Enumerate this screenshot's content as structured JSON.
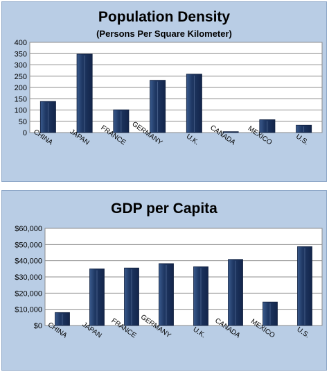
{
  "chart_data": [
    {
      "type": "bar",
      "title": "Population Density",
      "subtitle": "(Persons Per Square Kilometer)",
      "xlabel": "",
      "ylabel": "",
      "categories": [
        "CHINA",
        "JAPAN",
        "FRANCE",
        "GERMANY",
        "U.K.",
        "CANADA",
        "MEXICO",
        "U.S."
      ],
      "values": [
        138,
        348,
        101,
        232,
        259,
        4,
        57,
        33
      ],
      "ylim": [
        0,
        400
      ],
      "yticks": [
        0,
        50,
        100,
        150,
        200,
        250,
        300,
        350,
        400
      ],
      "ytick_labels": [
        "0",
        "50",
        "100",
        "150",
        "200",
        "250",
        "300",
        "350",
        "400"
      ],
      "grid": true,
      "bar_color": "#1f3864"
    },
    {
      "type": "bar",
      "title": "GDP per Capita",
      "xlabel": "",
      "ylabel": "",
      "categories": [
        "CHINA",
        "JAPAN",
        "FRANCE",
        "GERMANY",
        "U.K.",
        "CANADA",
        "MEXICO",
        "U.S."
      ],
      "values": [
        8000,
        35000,
        35500,
        38200,
        36300,
        40800,
        14500,
        48700
      ],
      "ylim": [
        0,
        60000
      ],
      "yticks": [
        0,
        10000,
        20000,
        30000,
        40000,
        50000,
        60000
      ],
      "ytick_labels": [
        "$0",
        "$10,000",
        "$20,000",
        "$30,000",
        "$40,000",
        "$50,000",
        "$60,000"
      ],
      "grid": true,
      "bar_color": "#1f3864"
    }
  ]
}
